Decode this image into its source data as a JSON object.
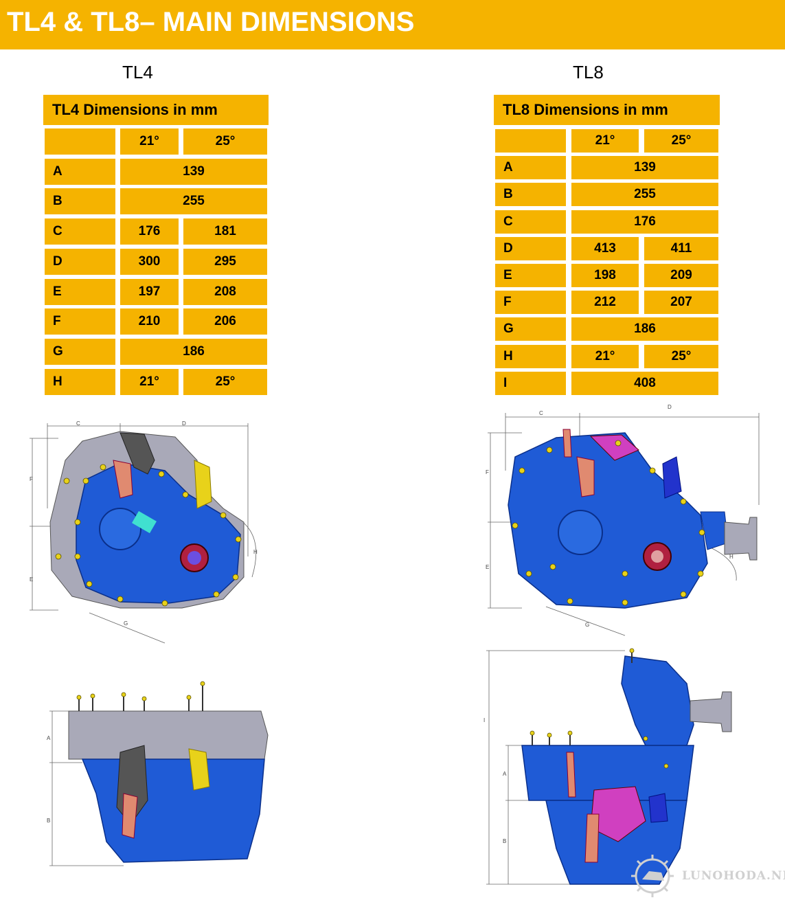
{
  "header": {
    "title": "TL4 & TL8– MAIN DIMENSIONS"
  },
  "tl4": {
    "label": "TL4",
    "table_title": "TL4 Dimensions in mm",
    "col_headers": [
      "21°",
      "25°"
    ],
    "rows": [
      {
        "key": "A",
        "values": [
          "139"
        ]
      },
      {
        "key": "B",
        "values": [
          "255"
        ]
      },
      {
        "key": "C",
        "values": [
          "176",
          "181"
        ]
      },
      {
        "key": "D",
        "values": [
          "300",
          "295"
        ]
      },
      {
        "key": "E",
        "values": [
          "197",
          "208"
        ]
      },
      {
        "key": "F",
        "values": [
          "210",
          "206"
        ]
      },
      {
        "key": "G",
        "values": [
          "186"
        ]
      },
      {
        "key": "H",
        "values": [
          "21°",
          "25°"
        ]
      }
    ]
  },
  "tl8": {
    "label": "TL8",
    "table_title": "TL8 Dimensions in mm",
    "col_headers": [
      "21°",
      "25°"
    ],
    "rows": [
      {
        "key": "A",
        "values": [
          "139"
        ]
      },
      {
        "key": "B",
        "values": [
          "255"
        ]
      },
      {
        "key": "C",
        "values": [
          "176"
        ]
      },
      {
        "key": "D",
        "values": [
          "413",
          "411"
        ]
      },
      {
        "key": "E",
        "values": [
          "198",
          "209"
        ]
      },
      {
        "key": "F",
        "values": [
          "212",
          "207"
        ]
      },
      {
        "key": "G",
        "values": [
          "186"
        ]
      },
      {
        "key": "H",
        "values": [
          "21°",
          "25°"
        ]
      },
      {
        "key": "I",
        "values": [
          "408"
        ]
      }
    ]
  },
  "drawings": {
    "tl4_front": {
      "dims": [
        "C",
        "D",
        "F",
        "E",
        "G",
        "H"
      ]
    },
    "tl4_side": {
      "dims": [
        "A",
        "B"
      ]
    },
    "tl8_front": {
      "dims": [
        "C",
        "D",
        "F",
        "E",
        "G",
        "H"
      ]
    },
    "tl8_side": {
      "dims": [
        "I",
        "A",
        "B"
      ]
    }
  },
  "watermark": {
    "text": "LUNOHODA.NET"
  },
  "colors": {
    "accent": "#f5b300",
    "housing_blue": "#1f5bd6",
    "housing_gray": "#a9a9b8",
    "bolt_yellow": "#e8d21a"
  }
}
